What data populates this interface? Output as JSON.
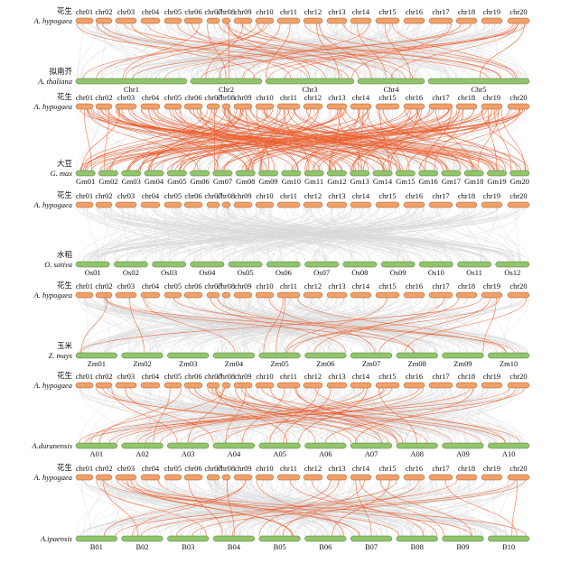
{
  "colors": {
    "peanut": "#f0a068",
    "other": "#92c46c",
    "background_links": "#d9d9d9",
    "highlight_links": "#f05a28"
  },
  "peanut": {
    "cn": "花生",
    "latin": "A. hypogaea",
    "chromosomes": [
      "chr01",
      "chr02",
      "chr03",
      "chr04",
      "chr05",
      "chr06",
      "chr07",
      "chr08",
      "chr09",
      "chr10",
      "chr11",
      "chr12",
      "chr13",
      "chr14",
      "chr15",
      "chr16",
      "chr17",
      "chr18",
      "chr19",
      "chr20"
    ]
  },
  "panels": [
    {
      "cn": "拟南芥",
      "latin": "A. thaliana",
      "chromosomes": [
        "Chr1",
        "Chr2",
        "Chr3",
        "Chr4",
        "Chr5"
      ]
    },
    {
      "cn": "大豆",
      "latin": "G. max",
      "chromosomes": [
        "Gm01",
        "Gm02",
        "Gm03",
        "Gm04",
        "Gm05",
        "Gm06",
        "Gm07",
        "Gm08",
        "Gm09",
        "Gm10",
        "Gm11",
        "Gm12",
        "Gm13",
        "Gm14",
        "Gm15",
        "Gm16",
        "Gm17",
        "Gm18",
        "Gm19",
        "Gm20"
      ]
    },
    {
      "cn": "水稻",
      "latin": "O. sativa",
      "chromosomes": [
        "Os01",
        "Os02",
        "Os03",
        "Os04",
        "Os05",
        "Os06",
        "Os07",
        "Os08",
        "Os09",
        "Os10",
        "Os11",
        "Os12"
      ]
    },
    {
      "cn": "玉米",
      "latin": "Z. mays",
      "chromosomes": [
        "Zm01",
        "Zm02",
        "Zm03",
        "Zm04",
        "Zm05",
        "Zm06",
        "Zm07",
        "Zm08",
        "Zm09",
        "Zm10"
      ]
    },
    {
      "cn": "",
      "latin": "A.duranensis",
      "chromosomes": [
        "A01",
        "A02",
        "A03",
        "A04",
        "A05",
        "A06",
        "A07",
        "A08",
        "A09",
        "A10"
      ]
    },
    {
      "cn": "",
      "latin": "A.ipaensis",
      "chromosomes": [
        "B01",
        "B02",
        "B03",
        "B04",
        "B05",
        "B06",
        "B07",
        "B08",
        "B09",
        "B10"
      ]
    }
  ]
}
